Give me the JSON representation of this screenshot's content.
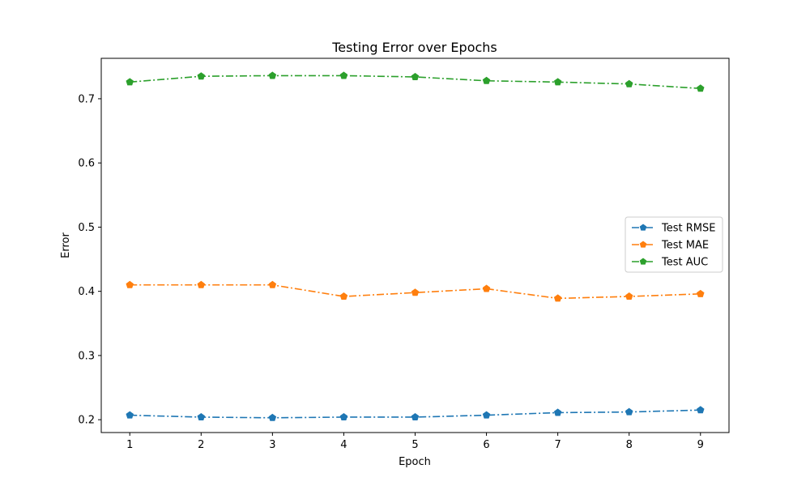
{
  "chart_data": {
    "type": "line",
    "title": "Testing Error over Epochs",
    "xlabel": "Epoch",
    "ylabel": "Error",
    "x": [
      1,
      2,
      3,
      4,
      5,
      6,
      7,
      8,
      9
    ],
    "xlim": [
      0.6,
      9.4
    ],
    "ylim": [
      0.18,
      0.763
    ],
    "yticks": [
      0.2,
      0.3,
      0.4,
      0.5,
      0.6,
      0.7
    ],
    "ytick_labels": [
      "0.2",
      "0.3",
      "0.4",
      "0.5",
      "0.6",
      "0.7"
    ],
    "xticks": [
      1,
      2,
      3,
      4,
      5,
      6,
      7,
      8,
      9
    ],
    "xtick_labels": [
      "1",
      "2",
      "3",
      "4",
      "5",
      "6",
      "7",
      "8",
      "9"
    ],
    "grid": false,
    "legend_position": "center-right",
    "marker": "pentagon",
    "series": [
      {
        "name": "Test RMSE",
        "color": "#1f77b4",
        "values": [
          0.207,
          0.204,
          0.203,
          0.204,
          0.204,
          0.207,
          0.211,
          0.212,
          0.215
        ]
      },
      {
        "name": "Test MAE",
        "color": "#ff7f0e",
        "values": [
          0.41,
          0.41,
          0.41,
          0.392,
          0.398,
          0.404,
          0.389,
          0.392,
          0.396
        ]
      },
      {
        "name": "Test AUC",
        "color": "#2ca02c",
        "values": [
          0.726,
          0.735,
          0.736,
          0.736,
          0.734,
          0.728,
          0.726,
          0.723,
          0.716
        ]
      }
    ]
  }
}
